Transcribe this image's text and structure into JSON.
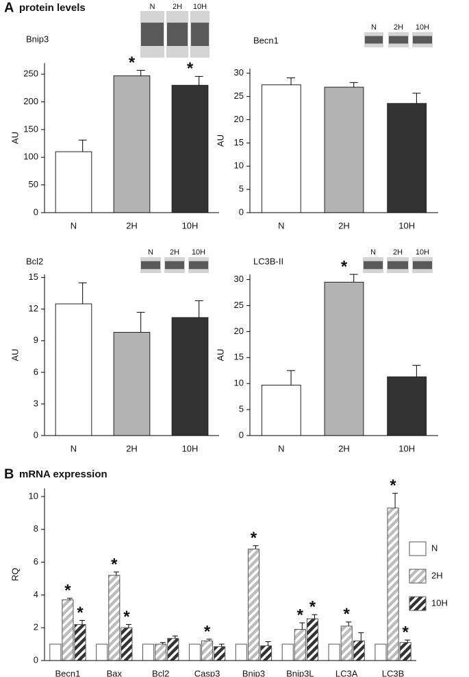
{
  "panels": [
    {
      "letter": "A",
      "title": "protein levels"
    },
    {
      "letter": "B",
      "title": "mRNA expression"
    }
  ],
  "chart_data": [
    {
      "type": "bar",
      "title": "Bnip3",
      "ylabel": "AU",
      "blot_lanes": [
        "N",
        "2H",
        "10H"
      ],
      "categories": [
        "N",
        "2H",
        "10H"
      ],
      "values": [
        110,
        247,
        230
      ],
      "errors": [
        21,
        10,
        16
      ],
      "significance": [
        null,
        "*",
        "*"
      ],
      "colors": [
        "#ffffff",
        "#b3b3b3",
        "#333333"
      ],
      "ylim": [
        0,
        270
      ],
      "yticks": [
        0,
        50,
        100,
        150,
        200,
        250
      ]
    },
    {
      "type": "bar",
      "title": "Becn1",
      "ylabel": "AU",
      "blot_lanes": [
        "N",
        "2H",
        "10H"
      ],
      "categories": [
        "N",
        "2H",
        "10H"
      ],
      "values": [
        27.5,
        27,
        23.5
      ],
      "errors": [
        1.5,
        1,
        2.2
      ],
      "significance": [
        null,
        null,
        null
      ],
      "colors": [
        "#ffffff",
        "#b3b3b3",
        "#333333"
      ],
      "ylim": [
        0,
        31
      ],
      "yticks": [
        0,
        5,
        10,
        15,
        20,
        25,
        30
      ]
    },
    {
      "type": "bar",
      "title": "Bcl2",
      "ylabel": "AU",
      "blot_lanes": [
        "N",
        "2H",
        "10H"
      ],
      "categories": [
        "N",
        "2H",
        "10H"
      ],
      "values": [
        12.5,
        9.8,
        11.2
      ],
      "errors": [
        2,
        1.9,
        1.6
      ],
      "significance": [
        null,
        null,
        null
      ],
      "colors": [
        "#ffffff",
        "#b3b3b3",
        "#333333"
      ],
      "ylim": [
        0,
        15.3
      ],
      "yticks": [
        0,
        3,
        6,
        9,
        12,
        15
      ]
    },
    {
      "type": "bar",
      "title": "LC3B-II",
      "ylabel": "AU",
      "blot_lanes": [
        "N",
        "2H",
        "10H"
      ],
      "categories": [
        "N",
        "2H",
        "10H"
      ],
      "values": [
        9.7,
        29.5,
        11.3
      ],
      "errors": [
        2.8,
        1.5,
        2.2
      ],
      "significance": [
        null,
        "*",
        null
      ],
      "colors": [
        "#ffffff",
        "#b3b3b3",
        "#333333"
      ],
      "ylim": [
        0,
        31
      ],
      "yticks": [
        0,
        5,
        10,
        15,
        20,
        25,
        30
      ]
    },
    {
      "type": "bar",
      "ylabel": "RQ",
      "legend": "right",
      "categories": [
        "Becn1",
        "Bax",
        "Bcl2",
        "Casp3",
        "Bnip3",
        "Bnip3L",
        "LC3A",
        "LC3B"
      ],
      "series": [
        {
          "name": "N",
          "color": "#ffffff",
          "pattern": "solid",
          "values": [
            1,
            1,
            1,
            1,
            1,
            1,
            1,
            1
          ],
          "errors": [
            0,
            0,
            0,
            0,
            0,
            0,
            0,
            0
          ],
          "significance": [
            null,
            null,
            null,
            null,
            null,
            null,
            null,
            null
          ]
        },
        {
          "name": "2H",
          "color": "#bdbdbd",
          "pattern": "hatch",
          "values": [
            3.7,
            5.2,
            1.0,
            1.2,
            6.8,
            1.9,
            2.1,
            9.3
          ],
          "errors": [
            0.1,
            0.2,
            0.1,
            0.1,
            0.2,
            0.4,
            0.25,
            0.9
          ],
          "significance": [
            "*",
            "*",
            null,
            "*",
            "*",
            "*",
            "*",
            "*"
          ]
        },
        {
          "name": "10H",
          "color": "#333333",
          "pattern": "hatch",
          "values": [
            2.2,
            2.0,
            1.35,
            0.85,
            0.9,
            2.55,
            1.2,
            1.1
          ],
          "errors": [
            0.25,
            0.2,
            0.15,
            0.15,
            0.25,
            0.25,
            0.5,
            0.15
          ],
          "significance": [
            "*",
            "*",
            null,
            null,
            null,
            "*",
            null,
            "*"
          ]
        }
      ],
      "ylim": [
        0,
        10.5
      ],
      "yticks": [
        0,
        2,
        4,
        6,
        8,
        10
      ]
    }
  ]
}
